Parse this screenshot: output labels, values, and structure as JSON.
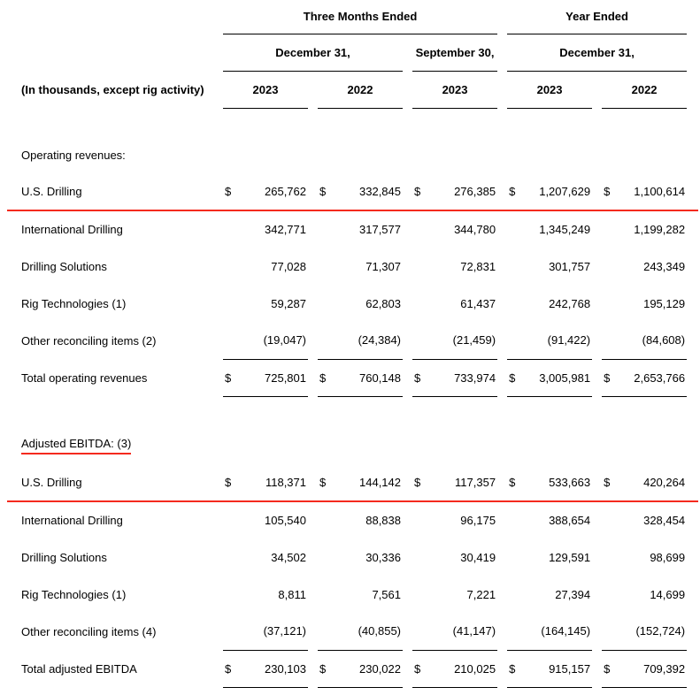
{
  "table": {
    "col_groups": {
      "three_months": "Three Months Ended",
      "year_ended": "Year Ended"
    },
    "period_headers": [
      "December 31,",
      "September 30,",
      "December 31,"
    ],
    "row_label_header": "(In thousands, except rig activity)",
    "years": [
      "2023",
      "2022",
      "2023",
      "2023",
      "2022"
    ],
    "dollar_sign": "$",
    "accent_red": "#f42a1e",
    "line_black": "#000000",
    "sections": [
      {
        "title": "Operating revenues:",
        "title_underline": false,
        "rows": [
          {
            "label": "U.S. Drilling",
            "dollar": true,
            "red_underline": true,
            "values": [
              "265,762",
              "332,845",
              "276,385",
              "1,207,629",
              "1,100,614"
            ]
          },
          {
            "label": "International Drilling",
            "dollar": false,
            "red_underline": false,
            "values": [
              "342,771",
              "317,577",
              "344,780",
              "1,345,249",
              "1,199,282"
            ]
          },
          {
            "label": "Drilling Solutions",
            "dollar": false,
            "red_underline": false,
            "values": [
              "77,028",
              "71,307",
              "72,831",
              "301,757",
              "243,349"
            ]
          },
          {
            "label": "Rig Technologies (1)",
            "dollar": false,
            "red_underline": false,
            "values": [
              "59,287",
              "62,803",
              "61,437",
              "242,768",
              "195,129"
            ]
          },
          {
            "label": "Other reconciling items (2)",
            "dollar": false,
            "red_underline": false,
            "values": [
              "(19,047)",
              "(24,384)",
              "(21,459)",
              "(91,422)",
              "(84,608)"
            ]
          }
        ],
        "total": {
          "label": "Total operating revenues",
          "dollar": true,
          "red_underline": false,
          "values": [
            "725,801",
            "760,148",
            "733,974",
            "3,005,981",
            "2,653,766"
          ]
        }
      },
      {
        "title": "Adjusted EBITDA: (3)",
        "title_underline": true,
        "rows": [
          {
            "label": "U.S. Drilling",
            "dollar": true,
            "red_underline": true,
            "values": [
              "118,371",
              "144,142",
              "117,357",
              "533,663",
              "420,264"
            ]
          },
          {
            "label": "International Drilling",
            "dollar": false,
            "red_underline": false,
            "values": [
              "105,540",
              "88,838",
              "96,175",
              "388,654",
              "328,454"
            ]
          },
          {
            "label": "Drilling Solutions",
            "dollar": false,
            "red_underline": false,
            "values": [
              "34,502",
              "30,336",
              "30,419",
              "129,591",
              "98,699"
            ]
          },
          {
            "label": "Rig Technologies (1)",
            "dollar": false,
            "red_underline": false,
            "values": [
              "8,811",
              "7,561",
              "7,221",
              "27,394",
              "14,699"
            ]
          },
          {
            "label": "Other reconciling items (4)",
            "dollar": false,
            "red_underline": false,
            "values": [
              "(37,121)",
              "(40,855)",
              "(41,147)",
              "(164,145)",
              "(152,724)"
            ]
          }
        ],
        "total": {
          "label": "Total adjusted EBITDA",
          "dollar": true,
          "red_underline": false,
          "values": [
            "230,103",
            "230,022",
            "210,025",
            "915,157",
            "709,392"
          ]
        }
      }
    ]
  }
}
